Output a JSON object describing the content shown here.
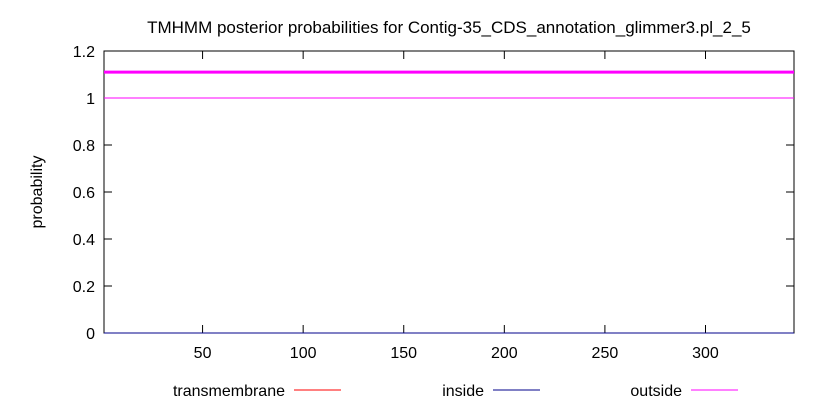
{
  "chart_data": {
    "type": "line",
    "title": "TMHMM posterior probabilities for Contig-35_CDS_annotation_glimmer3.pl_2_5",
    "xlabel": "",
    "ylabel": "probability",
    "xlim": [
      1,
      344
    ],
    "ylim": [
      0,
      1.2
    ],
    "x_ticks": [
      50,
      100,
      150,
      200,
      250,
      300
    ],
    "y_ticks": [
      0,
      0.2,
      0.4,
      0.6,
      0.8,
      1,
      1.2
    ],
    "x_tick_labels": [
      "50",
      "100",
      "150",
      "200",
      "250",
      "300"
    ],
    "y_tick_labels": [
      "0",
      "0.2",
      "0.4",
      "0.6",
      "0.8",
      "1",
      "1.2"
    ],
    "grid": false,
    "legend_position": "bottom",
    "series": [
      {
        "name": "transmembrane",
        "color": "#ff0000",
        "x": [
          1,
          344
        ],
        "values": [
          0,
          0
        ]
      },
      {
        "name": "inside",
        "color": "#00008b",
        "x": [
          1,
          344
        ],
        "values": [
          0,
          0
        ]
      },
      {
        "name": "outside",
        "color": "#ff00ff",
        "x": [
          1,
          344
        ],
        "values": [
          1,
          1
        ]
      }
    ],
    "annotation_band": {
      "color": "#ff00ff",
      "y": 1.11,
      "x": [
        1,
        344
      ]
    }
  }
}
